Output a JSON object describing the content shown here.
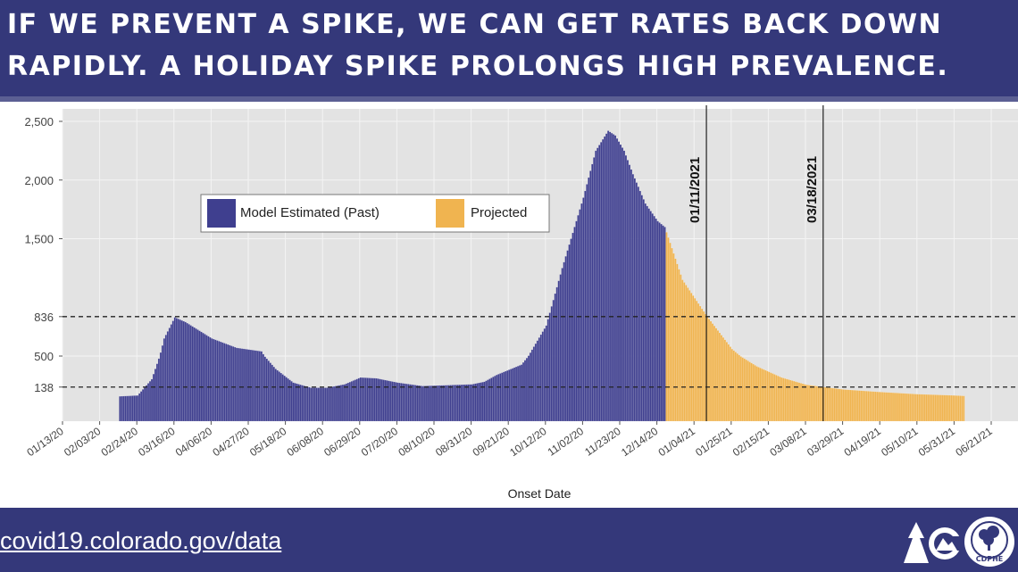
{
  "headline": {
    "line1": "IF WE PREVENT A SPIKE, WE CAN GET RATES BACK DOWN",
    "line2": "RAPIDLY. A HOLIDAY SPIKE PROLONGS HIGH PREVALENCE."
  },
  "footer": {
    "url": "covid19.colorado.gov/data",
    "logo_text": "CDPHE"
  },
  "colors": {
    "past": "#3f3f8f",
    "projected": "#f0b450",
    "panel": "#e3e3e3",
    "header": "#34387a"
  },
  "chart_data": {
    "type": "bar",
    "xlabel": "Onset Date",
    "ylabel": "",
    "y_ticks": [
      138,
      500,
      836,
      1500,
      2000,
      2500
    ],
    "y_tick_labels": [
      "138",
      "500",
      "836",
      "1,500",
      "2,000",
      "2,500"
    ],
    "x_tick_labels": [
      "01/13/20",
      "02/03/20",
      "02/24/20",
      "03/16/20",
      "04/06/20",
      "04/27/20",
      "05/18/20",
      "06/08/20",
      "06/29/20",
      "07/20/20",
      "08/10/20",
      "08/31/20",
      "09/21/20",
      "10/12/20",
      "11/02/20",
      "11/23/20",
      "12/14/20",
      "01/04/21",
      "01/25/21",
      "02/15/21",
      "03/08/21",
      "03/29/21",
      "04/19/21",
      "05/10/21",
      "05/31/21",
      "06/21/21"
    ],
    "hlines": [
      836,
      138
    ],
    "vlines": [
      {
        "date": "2021-01-11",
        "label": "01/11/2021"
      },
      {
        "date": "2021-03-18",
        "label": "03/18/2021"
      }
    ],
    "legend": {
      "position": "top-left",
      "entries": [
        "Model Estimated (Past)",
        "Projected"
      ]
    },
    "series": [
      {
        "name": "Model Estimated (Past)",
        "x": [
          "2020-02-14",
          "2020-02-24",
          "2020-03-03",
          "2020-03-10",
          "2020-03-16",
          "2020-03-22",
          "2020-04-06",
          "2020-04-20",
          "2020-05-04",
          "2020-05-12",
          "2020-05-22",
          "2020-06-01",
          "2020-06-10",
          "2020-06-20",
          "2020-06-29",
          "2020-07-08",
          "2020-07-20",
          "2020-08-03",
          "2020-08-17",
          "2020-08-31",
          "2020-09-07",
          "2020-09-14",
          "2020-09-28",
          "2020-10-12",
          "2020-10-21",
          "2020-11-02",
          "2020-11-09",
          "2020-11-16",
          "2020-11-20",
          "2020-11-25",
          "2020-11-30",
          "2020-12-07",
          "2020-12-14",
          "2020-12-18"
        ],
        "y": [
          30,
          40,
          230,
          650,
          830,
          790,
          650,
          570,
          540,
          350,
          190,
          130,
          130,
          170,
          250,
          240,
          190,
          150,
          160,
          170,
          200,
          280,
          400,
          760,
          1250,
          1850,
          2250,
          2420,
          2380,
          2250,
          2050,
          1800,
          1650,
          1600
        ]
      },
      {
        "name": "Projected",
        "x": [
          "2020-12-18",
          "2020-12-28",
          "2021-01-11",
          "2021-01-25",
          "2021-02-08",
          "2021-02-22",
          "2021-03-08",
          "2021-03-18",
          "2021-03-29",
          "2021-04-19",
          "2021-05-10",
          "2021-05-31",
          "2021-06-05"
        ],
        "y": [
          1600,
          1150,
          836,
          560,
          380,
          250,
          165,
          138,
          110,
          80,
          55,
          40,
          35
        ]
      }
    ]
  }
}
